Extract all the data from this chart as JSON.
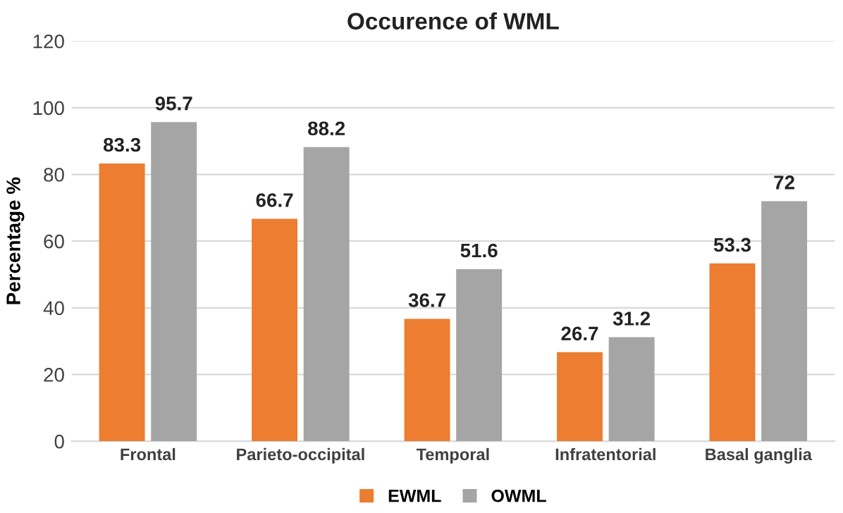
{
  "chart_data": {
    "type": "bar",
    "title": "Occurence of WML",
    "ylabel": "Percentage %",
    "categories": [
      "Frontal",
      "Parieto-occipital",
      "Temporal",
      "Infratentorial",
      "Basal ganglia"
    ],
    "series": [
      {
        "name": "EWML",
        "color": "#ed7d31",
        "values": [
          83.3,
          66.7,
          36.7,
          26.7,
          53.3
        ]
      },
      {
        "name": "OWML",
        "color": "#a5a5a5",
        "values": [
          95.7,
          88.2,
          51.6,
          31.2,
          72
        ]
      }
    ],
    "ylim": [
      0,
      120
    ],
    "yticks": [
      0,
      20,
      40,
      60,
      80,
      100,
      120
    ],
    "grid": "y",
    "legend": "bottom",
    "data_labels": true
  }
}
